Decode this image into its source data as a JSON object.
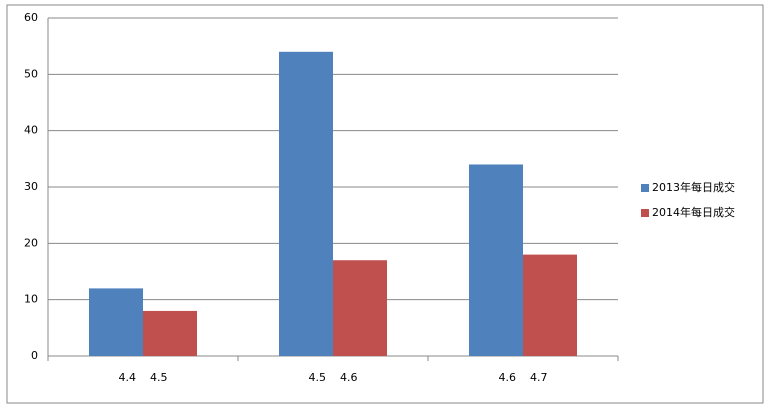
{
  "chart_data": {
    "type": "bar",
    "categories": [
      "4.4    4.5",
      "4.5    4.6",
      "4.6    4.7"
    ],
    "series": [
      {
        "name": "2013年每日成交",
        "color": "#4f81bd",
        "values": [
          12,
          54,
          34
        ]
      },
      {
        "name": "2014年每日成交",
        "color": "#c0504d",
        "values": [
          8,
          17,
          18
        ]
      }
    ],
    "ylim": [
      0,
      60
    ],
    "yticks": [
      0,
      10,
      20,
      30,
      40,
      50,
      60
    ],
    "grid": true,
    "legend": "right"
  }
}
